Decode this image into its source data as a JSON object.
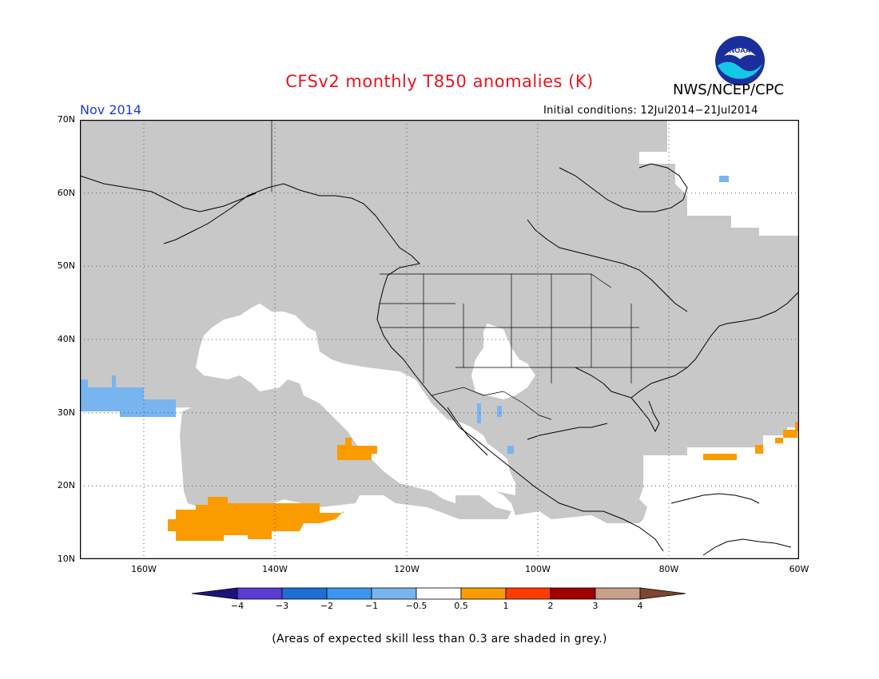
{
  "header": {
    "title": "CFSv2 monthly T850 anomalies (K)",
    "agency": "NWS/NCEP/CPC",
    "logo_text": "NOAA",
    "valid_month": "Nov 2014",
    "initial_conditions": "Initial conditions: 12Jul2014−21Jul2014"
  },
  "map": {
    "projection": "cylindrical lat-lon",
    "lat_range": [
      10,
      70
    ],
    "lon_range": [
      -172,
      -60
    ],
    "lat_labels": [
      "70N",
      "60N",
      "50N",
      "40N",
      "30N",
      "20N",
      "10N"
    ],
    "lon_labels": [
      "160W",
      "140W",
      "120W",
      "100W",
      "80W",
      "60W"
    ],
    "gridlines": "dotted",
    "skill_mask_color": "#c8c8c8",
    "regions_shown": [
      {
        "category": "below -0.5 (light blue)",
        "color": "#78b4f0",
        "area": "subtropical NE Pacific 30-35N, 157-172W"
      },
      {
        "category": "0.5 to 1 (orange)",
        "color": "#fa9b00",
        "area": "tropical NE Pacific 12-18N, 131-155W"
      },
      {
        "category": "0.5 to 1 (orange)",
        "color": "#fa9b00",
        "area": "NE Pacific near 25N, 128W"
      },
      {
        "category": "0.5 to 1 (orange)",
        "color": "#fa9b00",
        "area": "W Atlantic 24-28N, 60-75W"
      }
    ]
  },
  "colorbar": {
    "labels": [
      "−4",
      "−3",
      "−2",
      "−1",
      "−0.5",
      "0.5",
      "1",
      "2",
      "3",
      "4"
    ],
    "colors": [
      "#1e1478",
      "#5a3cd2",
      "#1e6ed2",
      "#3c96f0",
      "#78b4f0",
      "#ffffff",
      "#fa9b00",
      "#ff3c00",
      "#a00000",
      "#c8a08c",
      "#7d4632"
    ]
  },
  "footnote": "(Areas of expected skill less than 0.3 are shaded in grey.)"
}
